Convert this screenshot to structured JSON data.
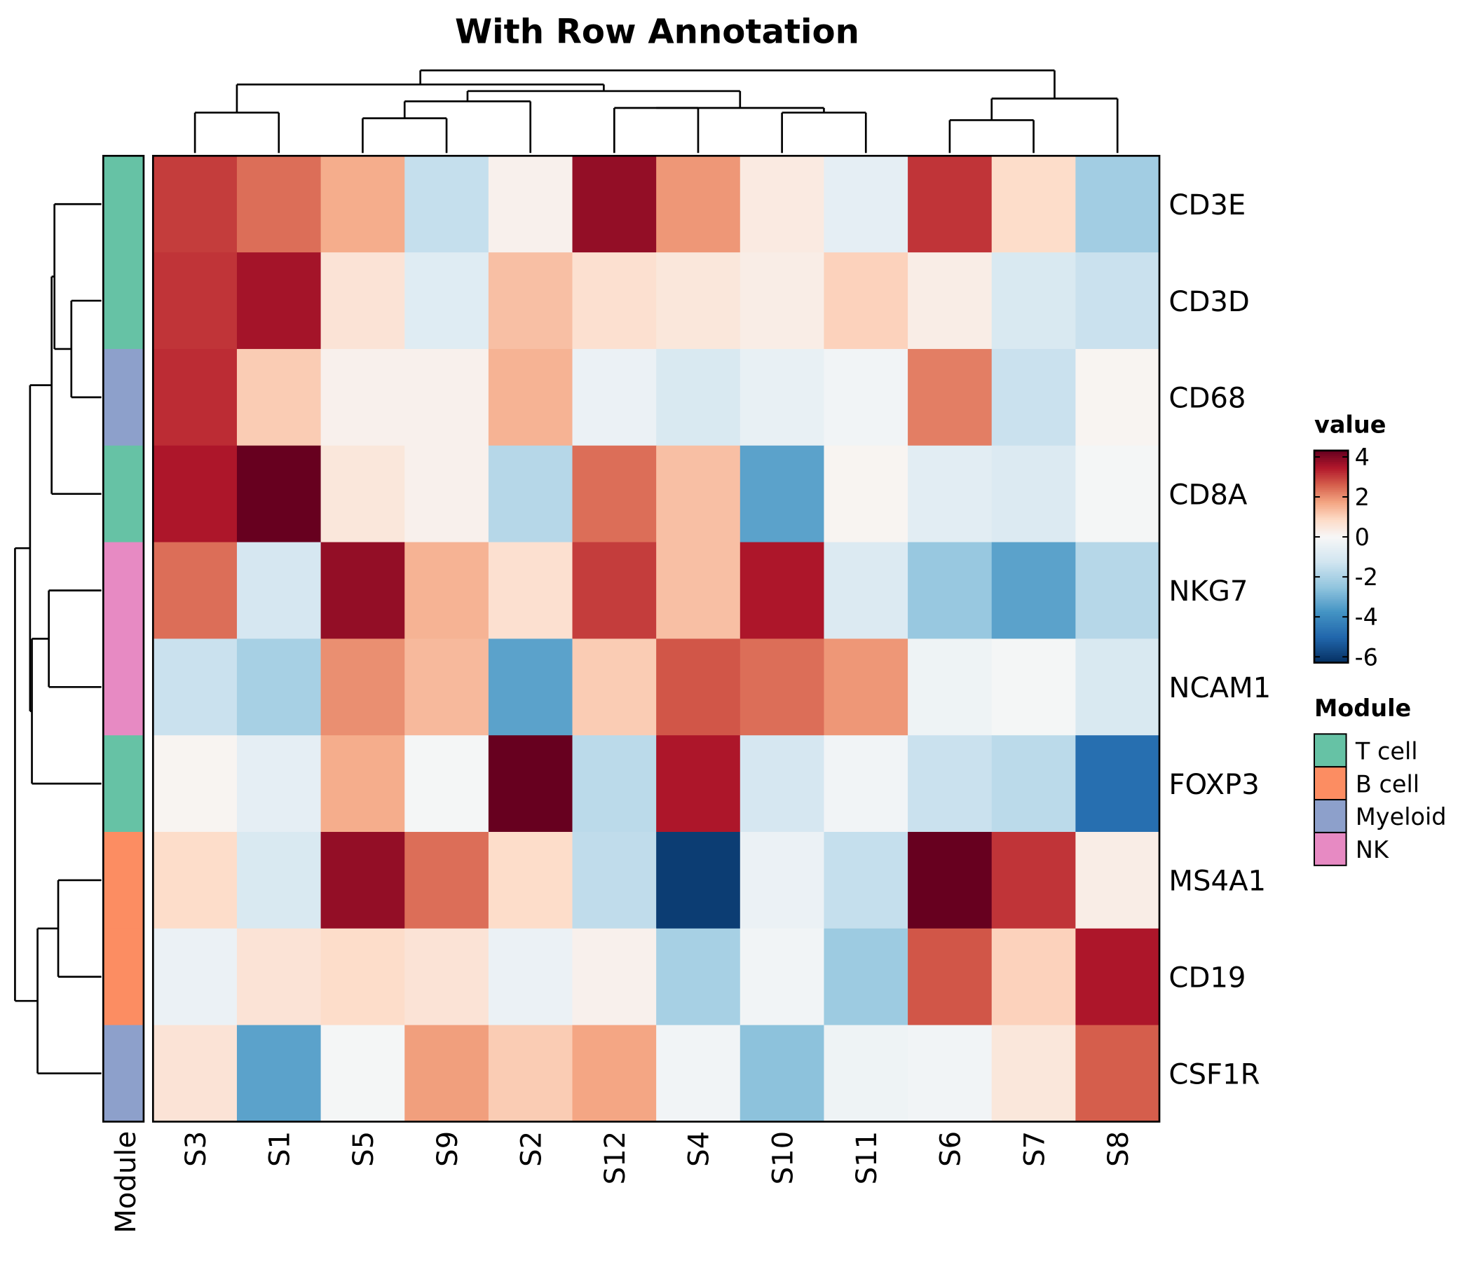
{
  "chart_data": {
    "type": "heatmap",
    "title": "With Row Annotation",
    "columns": [
      "S3",
      "S1",
      "S5",
      "S9",
      "S2",
      "S12",
      "S4",
      "S10",
      "S11",
      "S6",
      "S7",
      "S8"
    ],
    "rows": [
      "CD3E",
      "CD3D",
      "CD68",
      "CD8A",
      "NKG7",
      "NCAM1",
      "FOXP3",
      "MS4A1",
      "CD19",
      "CSF1R"
    ],
    "values": [
      [
        3.0,
        2.4,
        1.6,
        -1.5,
        0.2,
        3.8,
        1.9,
        0.4,
        -0.6,
        3.1,
        0.8,
        -2.2
      ],
      [
        3.1,
        3.6,
        0.6,
        -0.8,
        1.3,
        0.7,
        0.5,
        0.3,
        1.0,
        0.3,
        -1.0,
        -1.4
      ],
      [
        3.2,
        1.1,
        0.2,
        0.2,
        1.5,
        -0.4,
        -1.0,
        -0.5,
        -0.2,
        2.2,
        -1.4,
        0.1
      ],
      [
        3.5,
        4.4,
        0.5,
        0.2,
        -1.8,
        2.4,
        1.3,
        -3.4,
        0.1,
        -0.7,
        -0.9,
        -0.1
      ],
      [
        2.4,
        -1.1,
        3.8,
        1.5,
        0.7,
        3.0,
        1.3,
        3.5,
        -0.9,
        -2.4,
        -3.4,
        -1.8
      ],
      [
        -1.4,
        -2.1,
        2.0,
        1.4,
        -3.4,
        1.1,
        2.7,
        2.4,
        1.9,
        -0.3,
        -0.1,
        -1.0
      ],
      [
        0.1,
        -0.6,
        1.6,
        -0.1,
        4.6,
        -1.7,
        3.5,
        -1.1,
        -0.2,
        -1.4,
        -1.7,
        -4.8
      ],
      [
        0.8,
        -1.0,
        3.8,
        2.4,
        0.8,
        -1.6,
        -6.0,
        -0.4,
        -1.5,
        4.6,
        3.1,
        0.3
      ],
      [
        -0.4,
        0.6,
        0.8,
        0.6,
        -0.4,
        0.2,
        -2.1,
        -0.2,
        -2.3,
        2.7,
        1.0,
        3.5
      ],
      [
        0.6,
        -3.4,
        -0.1,
        1.8,
        1.1,
        1.7,
        -0.2,
        -2.6,
        -0.3,
        -0.2,
        0.5,
        2.6
      ]
    ],
    "color_scale": {
      "title": "value",
      "range": [
        -6.3,
        4.3
      ],
      "ticks": [
        4,
        2,
        0,
        -2,
        -4,
        -6
      ],
      "colors": [
        "#67001f",
        "#b2182b",
        "#d6604d",
        "#f4a582",
        "#fddbc7",
        "#f7f7f7",
        "#d1e5f0",
        "#92c5de",
        "#4393c3",
        "#2166ac",
        "#053061"
      ]
    },
    "row_annotation": {
      "label": "Module",
      "values": [
        "T cell",
        "T cell",
        "Myeloid",
        "T cell",
        "NK",
        "NK",
        "T cell",
        "B cell",
        "B cell",
        "Myeloid"
      ]
    },
    "module_legend": {
      "title": "Module",
      "items": [
        {
          "label": "T cell",
          "color": "#66c2a5"
        },
        {
          "label": "B cell",
          "color": "#fc8d62"
        },
        {
          "label": "Myeloid",
          "color": "#8da0cb"
        },
        {
          "label": "NK",
          "color": "#e78ac3"
        }
      ]
    },
    "column_dendrogram": {
      "h": 88,
      "c": [
        {
          "h": 73,
          "c": [
            {
              "h": 43,
              "c": [
                "S3",
                "S1"
              ]
            },
            {
              "h": 66,
              "c": [
                {
                  "h": 55,
                  "c": [
                    {
                      "h": 37,
                      "c": [
                        "S5",
                        "S9"
                      ]
                    },
                    "S2"
                  ]
                },
                {
                  "h": 48,
                  "c": [
                    {
                      "h": 48,
                      "c": [
                        "S12",
                        "S4"
                      ]
                    },
                    {
                      "h": 43,
                      "c": [
                        "S10",
                        "S11"
                      ]
                    }
                  ]
                }
              ]
            }
          ]
        },
        {
          "h": 58,
          "c": [
            {
              "h": 35,
              "c": [
                "S6",
                "S7"
              ]
            },
            "S8"
          ]
        }
      ]
    },
    "row_dendrogram": {
      "h": 92,
      "c": [
        {
          "h": 76,
          "c": [
            {
              "h": 53,
              "c": [
                {
                  "h": 50,
                  "c": [
                    "CD3E",
                    {
                      "h": 32,
                      "c": [
                        "CD3D",
                        "CD68"
                      ]
                    }
                  ]
                },
                "CD8A"
              ]
            },
            {
              "h": 74,
              "c": [
                {
                  "h": 56,
                  "c": [
                    "NKG7",
                    "NCAM1"
                  ]
                },
                "FOXP3"
              ]
            }
          ]
        },
        {
          "h": 68,
          "c": [
            {
              "h": 46,
              "c": [
                "MS4A1",
                "CD19"
              ]
            },
            "CSF1R"
          ]
        }
      ]
    }
  }
}
